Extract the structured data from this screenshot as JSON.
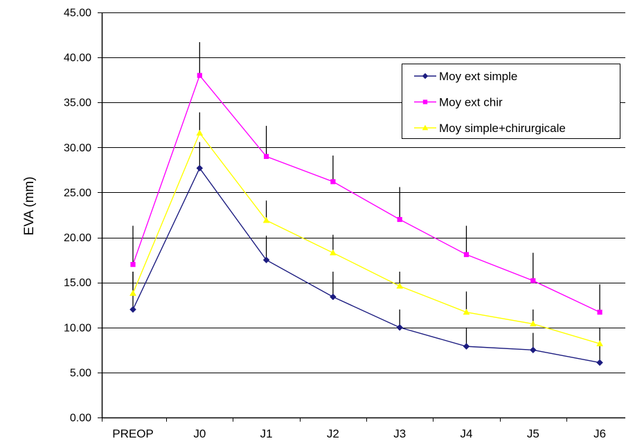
{
  "chart_data": {
    "type": "line",
    "categories": [
      "PREOP",
      "J0",
      "J1",
      "J2",
      "J3",
      "J4",
      "J5",
      "J6"
    ],
    "ylabel": "EVA (mm)",
    "ylim": [
      0,
      45
    ],
    "y_ticks": [
      0,
      5,
      10,
      15,
      20,
      25,
      30,
      35,
      40,
      45
    ],
    "y_tick_labels": [
      "0.00",
      "5.00",
      "10.00",
      "15.00",
      "20.00",
      "25.00",
      "30.00",
      "35.00",
      "40.00",
      "45.00"
    ],
    "grid": true,
    "legend_position": "top-right",
    "series": [
      {
        "name": "Moy ext simple",
        "color": "#1c1c80",
        "marker": "diamond",
        "values": [
          12.0,
          27.7,
          17.5,
          13.4,
          10.0,
          7.9,
          7.5,
          6.1
        ],
        "errors": [
          4.2,
          2.9,
          2.7,
          2.8,
          2.0,
          2.1,
          1.9,
          1.9
        ]
      },
      {
        "name": "Moy ext chir",
        "color": "#ff00ff",
        "marker": "square",
        "values": [
          17.0,
          38.0,
          29.0,
          26.2,
          22.0,
          18.1,
          15.2,
          11.7
        ],
        "errors": [
          4.3,
          3.7,
          3.4,
          2.9,
          3.6,
          3.2,
          3.1,
          3.1
        ]
      },
      {
        "name": "Moy simple+chirurgicale",
        "color": "#ffff00",
        "marker": "triangle",
        "values": [
          13.8,
          31.6,
          21.9,
          18.3,
          14.6,
          11.7,
          10.4,
          8.2
        ],
        "errors": [
          2.4,
          2.3,
          2.2,
          2.0,
          1.6,
          2.3,
          1.6,
          1.8
        ]
      }
    ]
  }
}
